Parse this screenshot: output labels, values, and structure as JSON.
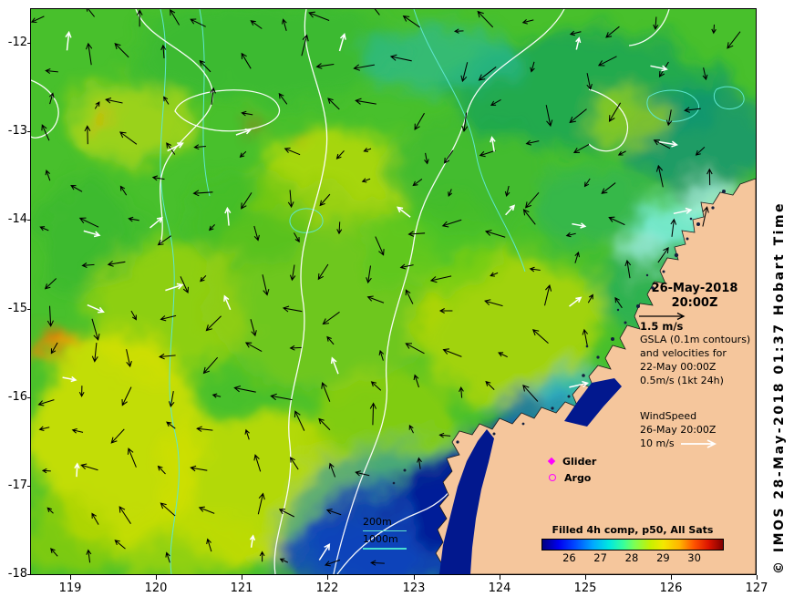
{
  "figure": {
    "land_color": "#f5c69c",
    "accent_magenta": "#ff00ff",
    "contour_white": "#ffffff",
    "contour_cyan": "#5fe6cf"
  },
  "axes": {
    "x_ticks": [
      "119",
      "120",
      "121",
      "122",
      "123",
      "124",
      "125",
      "126",
      "127"
    ],
    "y_ticks": [
      "-12",
      "-13",
      "-14",
      "-15",
      "-16",
      "-17",
      "-18"
    ]
  },
  "header": {
    "datetime_line1": "26-May-2018",
    "datetime_line2": "20:00Z"
  },
  "velocity_legend": {
    "scale_label": "1.5 m/s",
    "line1": "GSLA (0.1m contours)",
    "line2": "and velocities for",
    "line3": "22-May 00:00Z",
    "line4": "0.5m/s (1kt 24h)"
  },
  "wind_legend": {
    "line1": "WindSpeed",
    "line2": "26-May 20:00Z",
    "line3": "10 m/s"
  },
  "platform_legend": {
    "glider": "Glider",
    "argo": "Argo"
  },
  "bathymetry_legend": {
    "depth1": "200m",
    "depth2": "1000m"
  },
  "colorbar": {
    "title": "Filled 4h comp, p50, All Sats",
    "ticks": [
      "26",
      "27",
      "28",
      "29",
      "30"
    ]
  },
  "copyright": "© IMOS 28-May-2018 01:37 Hobart Time",
  "chart_data": {
    "type": "heatmap",
    "title": "Filled 4h comp, p50, All Sats",
    "x_ticks": [
      119,
      120,
      121,
      122,
      123,
      124,
      125,
      126,
      127
    ],
    "y_ticks": [
      -12,
      -13,
      -14,
      -15,
      -16,
      -17,
      -18
    ],
    "colorbar_ticks": [
      26,
      27,
      28,
      29,
      30
    ],
    "datetime": "26-May-2018 20:00Z"
  }
}
